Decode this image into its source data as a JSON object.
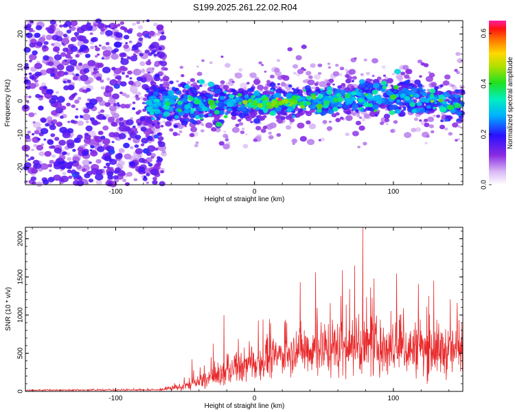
{
  "title": "S199.2025.261.22.02.R04",
  "chart_data": [
    {
      "type": "heatmap",
      "name": "spectrogram",
      "xlabel": "Height of straight line (km)",
      "ylabel": "Frequency (Hz)",
      "xlim": [
        -165,
        150
      ],
      "ylim": [
        -25,
        24
      ],
      "xticks": [
        -100,
        0,
        100
      ],
      "yticks": [
        -20,
        -10,
        0,
        10,
        20
      ],
      "colorbar": {
        "label": "Normalized spectral amplitude",
        "range": [
          0,
          0.65
        ],
        "ticks": [
          "0.0",
          "0.2",
          "0.4",
          "0.6"
        ],
        "tick_values": [
          0,
          0.2,
          0.4,
          0.6
        ]
      },
      "features": {
        "noise_region_x": [
          -165,
          -75
        ],
        "signal_center_x": [
          -75,
          150
        ],
        "peak": {
          "x": 18,
          "y": 0.5,
          "amplitude": 0.65
        }
      }
    },
    {
      "type": "line",
      "name": "snr",
      "xlabel": "Height of straight line (km)",
      "ylabel": "SNR (10 * v/v)",
      "xlim": [
        -165,
        150
      ],
      "ylim": [
        0,
        2150
      ],
      "xticks": [
        -100,
        0,
        100
      ],
      "yticks": [
        0,
        500,
        1000,
        1500,
        2000
      ],
      "color": "#e8282a",
      "envelope": {
        "x": [
          -165,
          -70,
          -60,
          -50,
          -40,
          -30,
          -20,
          -10,
          0,
          10,
          20,
          30,
          35,
          50,
          70,
          90,
          110,
          130,
          150
        ],
        "mean": [
          15,
          20,
          35,
          70,
          120,
          180,
          250,
          320,
          380,
          430,
          480,
          540,
          560,
          570,
          580,
          570,
          560,
          540,
          520
        ],
        "spread": [
          8,
          10,
          25,
          70,
          110,
          160,
          200,
          240,
          260,
          270,
          280,
          320,
          400,
          420,
          430,
          420,
          410,
          400,
          380
        ]
      },
      "spikes": [
        {
          "x": -45,
          "y": 420
        },
        {
          "x": -22,
          "y": 1000
        },
        {
          "x": 33,
          "y": 1430
        },
        {
          "x": 44,
          "y": 1560
        },
        {
          "x": 72,
          "y": 1650
        },
        {
          "x": 78,
          "y": 2150
        },
        {
          "x": 86,
          "y": 1480
        },
        {
          "x": 118,
          "y": 1410
        },
        {
          "x": 129,
          "y": 1450
        },
        {
          "x": 146,
          "y": 1160
        }
      ]
    }
  ]
}
